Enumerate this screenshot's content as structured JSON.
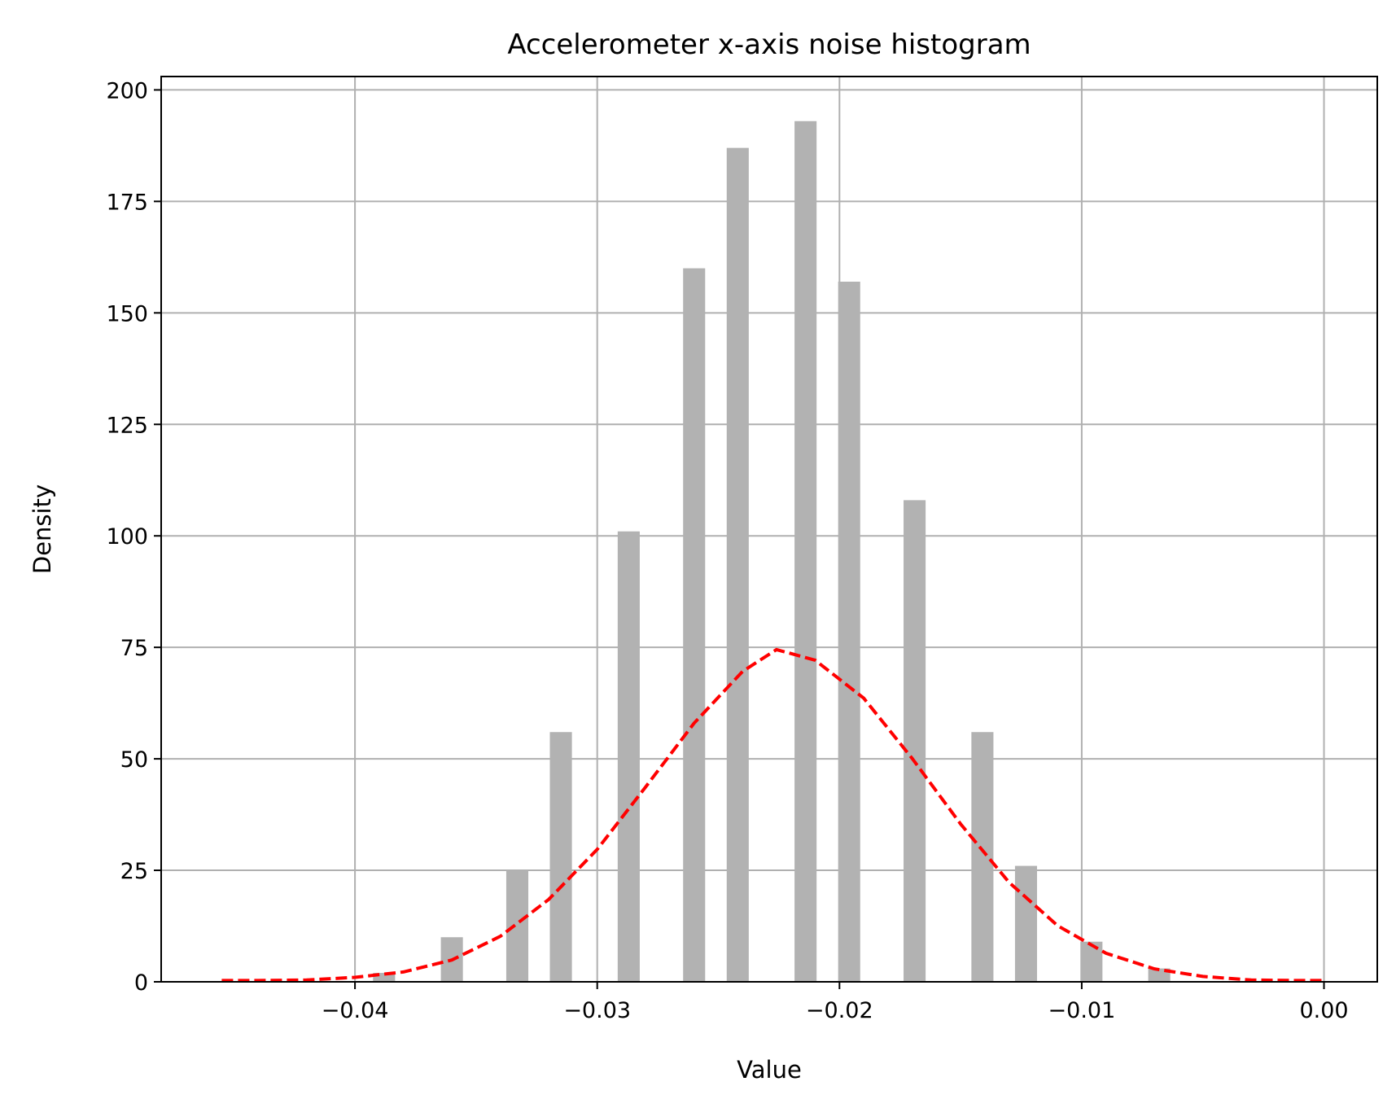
{
  "chart_data": {
    "type": "bar",
    "title": "Accelerometer x-axis noise histogram",
    "xlabel": "Value",
    "ylabel": "Density",
    "xlim": [
      -0.048,
      0.0022
    ],
    "ylim": [
      0,
      203
    ],
    "grid": true,
    "x_ticks": [
      {
        "value": -0.04,
        "label": "−0.04"
      },
      {
        "value": -0.03,
        "label": "−0.03"
      },
      {
        "value": -0.02,
        "label": "−0.02"
      },
      {
        "value": -0.01,
        "label": "−0.01"
      },
      {
        "value": 0.0,
        "label": "0.00"
      }
    ],
    "y_ticks": [
      {
        "value": 0,
        "label": "0"
      },
      {
        "value": 25,
        "label": "25"
      },
      {
        "value": 50,
        "label": "50"
      },
      {
        "value": 75,
        "label": "75"
      },
      {
        "value": 100,
        "label": "100"
      },
      {
        "value": 125,
        "label": "125"
      },
      {
        "value": 150,
        "label": "150"
      },
      {
        "value": 175,
        "label": "175"
      },
      {
        "value": 200,
        "label": "200"
      }
    ],
    "bar_width": 0.00091,
    "bar_color": "#b2b2b2",
    "bars": [
      {
        "x": -0.0388,
        "value": 2
      },
      {
        "x": -0.036,
        "value": 10
      },
      {
        "x": -0.0333,
        "value": 25
      },
      {
        "x": -0.0315,
        "value": 56
      },
      {
        "x": -0.0287,
        "value": 101
      },
      {
        "x": -0.026,
        "value": 160
      },
      {
        "x": -0.0242,
        "value": 187
      },
      {
        "x": -0.0214,
        "value": 193
      },
      {
        "x": -0.0196,
        "value": 157
      },
      {
        "x": -0.0169,
        "value": 108
      },
      {
        "x": -0.0141,
        "value": 56
      },
      {
        "x": -0.0123,
        "value": 26
      },
      {
        "x": -0.0096,
        "value": 9
      },
      {
        "x": -0.0068,
        "value": 3
      }
    ],
    "curve": {
      "type": "line",
      "style": "dashed",
      "color": "#ff0000",
      "x": [
        -0.0455,
        -0.044,
        -0.042,
        -0.04,
        -0.038,
        -0.036,
        -0.034,
        -0.032,
        -0.03,
        -0.028,
        -0.026,
        -0.024,
        -0.0226,
        -0.021,
        -0.019,
        -0.017,
        -0.015,
        -0.013,
        -0.011,
        -0.009,
        -0.007,
        -0.005,
        -0.003,
        -0.001,
        0.0
      ],
      "y": [
        0.3,
        0.3,
        0.4,
        1.0,
        2.2,
        4.9,
        10.2,
        18.5,
        29.7,
        43.7,
        58.0,
        69.6,
        74.5,
        72.1,
        63.6,
        50.1,
        35.4,
        22.3,
        12.6,
        6.4,
        2.9,
        1.2,
        0.4,
        0.3,
        0.3
      ]
    }
  }
}
